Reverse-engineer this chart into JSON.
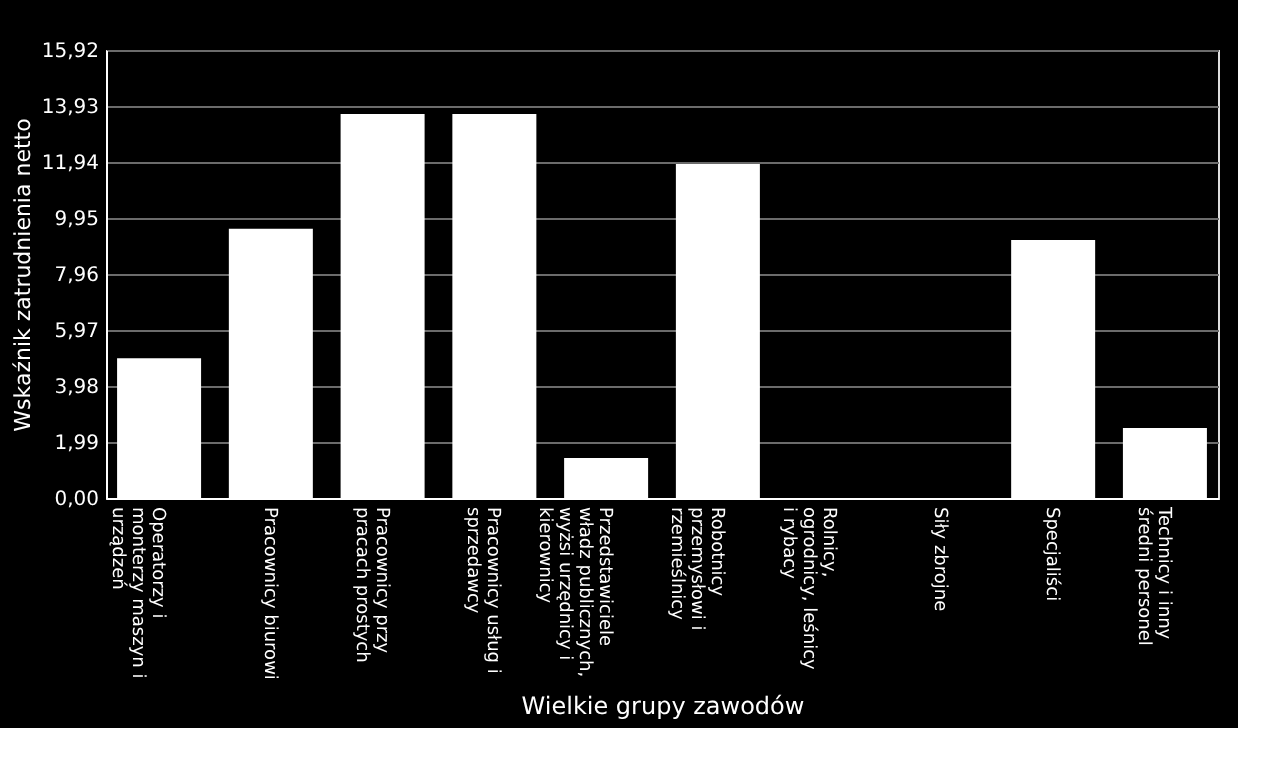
{
  "chart_data": {
    "type": "bar",
    "xlabel": "Wielkie grupy zawodów",
    "ylabel": "Wskaźnik zatrudnienia netto",
    "categories": [
      "Operatorzy i monterzy maszyn i urządzeń",
      "Pracownicy biurowi",
      "Pracownicy przy pracach prostych",
      "Pracownicy usług i sprzedawcy",
      "Przedstawiciele władz publicznych, wyżsi urzędnicy i kierownicy",
      "Robotnicy przemysłowi i rzemieślnicy",
      "Rolnicy, ogrodnicy, leśnicy i rybacy",
      "Siły zbrojne",
      "Specjaliści",
      "Technicy i inny średni personel"
    ],
    "values": [
      4.97,
      9.57,
      13.65,
      13.65,
      1.42,
      11.87,
      0,
      0,
      9.17,
      2.49
    ],
    "color": "#ffffff",
    "ylim": [
      0,
      15.92
    ],
    "yticks": [
      {
        "value": 0,
        "label": "0,00"
      },
      {
        "value": 1.99,
        "label": "1,99"
      },
      {
        "value": 3.98,
        "label": "3,98"
      },
      {
        "value": 5.97,
        "label": "5,97"
      },
      {
        "value": 7.96,
        "label": "7,96"
      },
      {
        "value": 9.95,
        "label": "9,95"
      },
      {
        "value": 11.94,
        "label": "11,94"
      },
      {
        "value": 13.93,
        "label": "13,93"
      },
      {
        "value": 15.92,
        "label": "15,92"
      }
    ],
    "grid": "y"
  }
}
